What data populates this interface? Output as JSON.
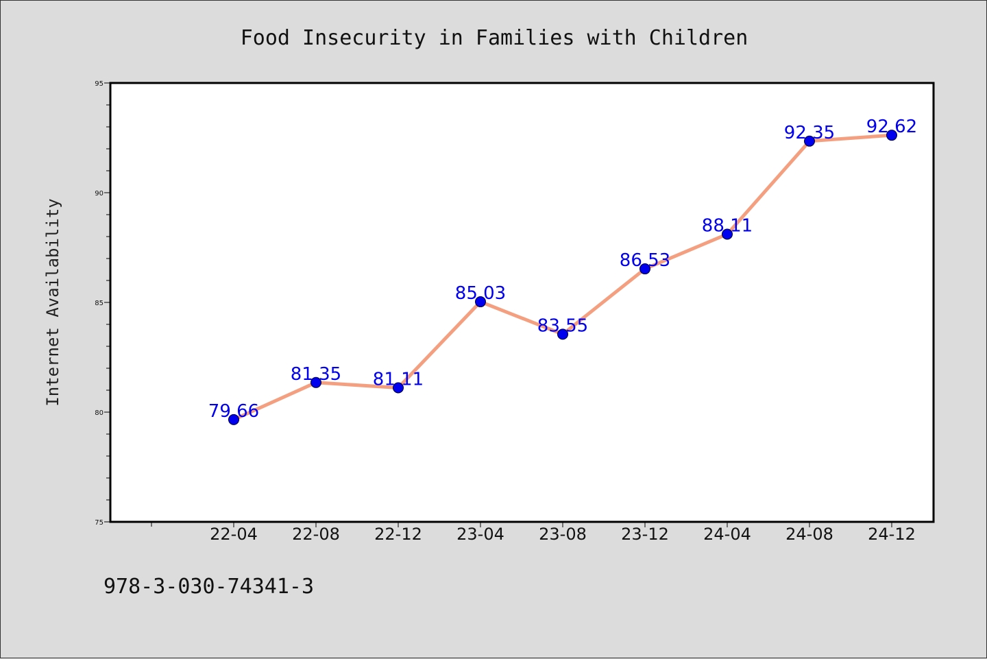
{
  "chart_data": {
    "type": "line",
    "title": "Food Insecurity in Families with Children",
    "xlabel": "",
    "ylabel": "Internet Availability",
    "categories": [
      "22-04",
      "22-08",
      "22-12",
      "23-04",
      "23-08",
      "23-12",
      "24-04",
      "24-08",
      "24-12"
    ],
    "values": [
      79.66,
      81.35,
      81.11,
      85.03,
      83.55,
      86.53,
      88.11,
      92.35,
      92.62
    ],
    "data_labels": [
      "79.66",
      "81.35",
      "81.11",
      "85.03",
      "83.55",
      "86.53",
      "88.11",
      "92.35",
      "92.62"
    ],
    "ylim": [
      75,
      95
    ],
    "yticks": [
      "75",
      "80",
      "85",
      "90",
      "95"
    ],
    "grid": false,
    "legend": "none",
    "line_color": "#f4a080",
    "marker_color": "#0000ee"
  },
  "footnote": "978-3-030-74341-3"
}
